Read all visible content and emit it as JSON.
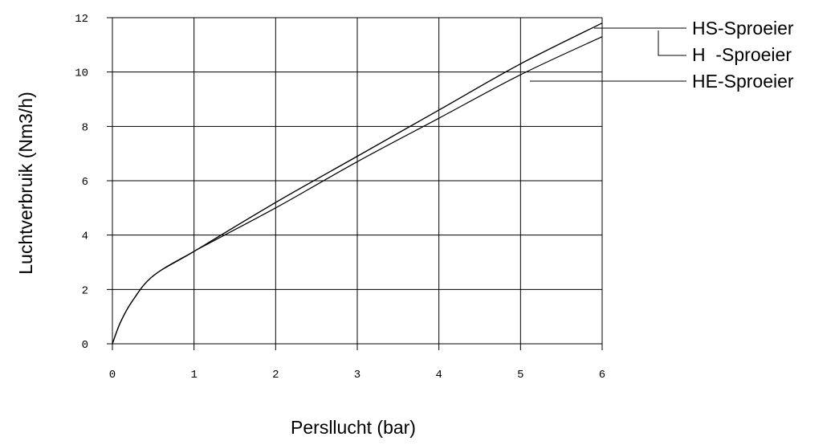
{
  "chart_data": {
    "type": "line",
    "xlabel": "Persllucht (bar)",
    "ylabel": "Luchtverbruik (Nm3/h)",
    "x": [
      0,
      0.1,
      0.25,
      0.5,
      1,
      2,
      3,
      4,
      5,
      6
    ],
    "series": [
      {
        "name": "HS-Sproeier",
        "color": "#000000",
        "values": [
          0,
          0.8,
          1.6,
          2.5,
          3.4,
          5.2,
          6.9,
          8.6,
          10.3,
          11.8
        ]
      },
      {
        "name": "H  -Sproeier",
        "color": "#000000",
        "values": [
          0,
          0.8,
          1.6,
          2.5,
          3.4,
          5.2,
          6.9,
          8.6,
          10.3,
          11.8
        ]
      },
      {
        "name": "HE-Sproeier",
        "color": "#000000",
        "values": [
          0,
          0.8,
          1.6,
          2.5,
          3.4,
          5.0,
          6.7,
          8.3,
          9.9,
          11.3
        ]
      }
    ],
    "xlim": [
      0,
      6
    ],
    "xticks": [
      0,
      1,
      2,
      3,
      4,
      5,
      6
    ],
    "ylim": [
      0,
      12
    ],
    "yticks": [
      0,
      2,
      4,
      6,
      8,
      10,
      12
    ],
    "grid": true
  }
}
